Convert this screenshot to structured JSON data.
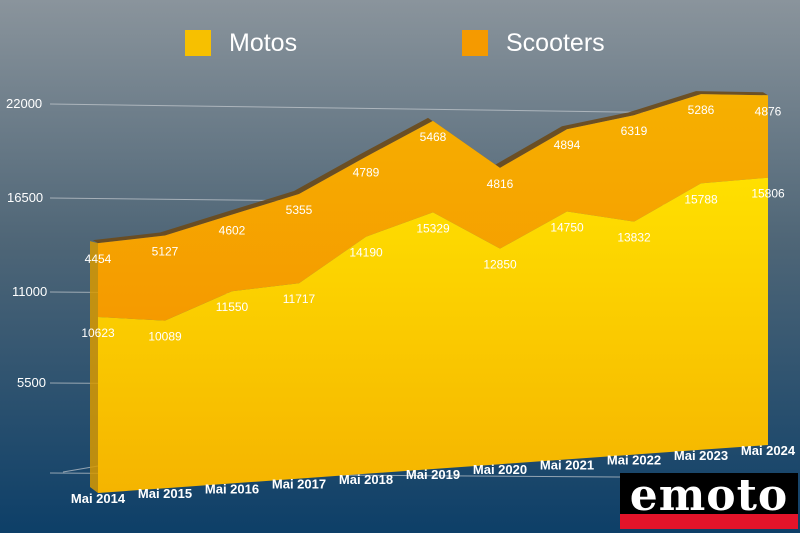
{
  "chart_data": {
    "type": "area",
    "stacked": true,
    "categories": [
      "Mai 2014",
      "Mai 2015",
      "Mai 2016",
      "Mai 2017",
      "Mai 2018",
      "Mai 2019",
      "Mai 2020",
      "Mai 2021",
      "Mai 2022",
      "Mai 2023",
      "Mai 2024"
    ],
    "series": [
      {
        "name": "Motos",
        "color": "#f7c000",
        "values": [
          10623,
          10089,
          11550,
          11717,
          14190,
          15329,
          12850,
          14750,
          13832,
          15788,
          15806
        ]
      },
      {
        "name": "Scooters",
        "color": "#f5a000",
        "values": [
          4454,
          5127,
          4602,
          5355,
          4789,
          5468,
          4816,
          4894,
          6319,
          5286,
          4876
        ]
      }
    ],
    "y_ticks": [
      "22000",
      "16500",
      "11000",
      "5500"
    ],
    "ylim": [
      0,
      22000
    ],
    "title": "",
    "xlabel": "",
    "ylabel": "",
    "grid": true,
    "legend_position": "top"
  },
  "logo": {
    "text": "emoto"
  }
}
